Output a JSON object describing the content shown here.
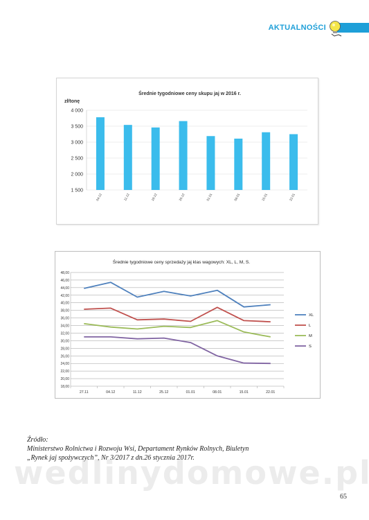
{
  "header": {
    "section": "AKTUALNOŚCI",
    "accent": "#1e9fd8"
  },
  "chart_data": [
    {
      "type": "bar",
      "title": "Średnie  tygodniowe  ceny skupu jaj w 2016 r.",
      "ylabel": "zł/tonę",
      "categories": [
        "04.12",
        "11.12",
        "18.12",
        "25.12",
        "01.01",
        "08.01",
        "15.01",
        "22.01"
      ],
      "values": [
        3780,
        3540,
        3460,
        3660,
        3190,
        3110,
        3310,
        3250
      ],
      "ylim": [
        1500,
        4000
      ],
      "yticks": [
        1500,
        2000,
        2500,
        3000,
        3500,
        4000
      ],
      "ytick_labels": [
        "1 500",
        "2 000",
        "2 500",
        "3 000",
        "3 500",
        "4 000"
      ],
      "grid": true,
      "bar_color": "#3bbcec"
    },
    {
      "type": "line",
      "title": "Średnie tygodniowe ceny sprzedaży jaj klas wagowych: XL, L, M, S.",
      "categories": [
        "27.11",
        "04.12",
        "11.12",
        "25.12",
        "01.01",
        "08.01",
        "15.01",
        "22.01"
      ],
      "ylim": [
        18,
        48
      ],
      "yticks": [
        18,
        20,
        22,
        24,
        26,
        28,
        30,
        32,
        34,
        36,
        38,
        40,
        42,
        44,
        46,
        48
      ],
      "ytick_labels": [
        "18,00",
        "20,00",
        "22,00",
        "24,00",
        "26,00",
        "28,00",
        "30,00",
        "32,00",
        "34,00",
        "36,00",
        "38,00",
        "40,00",
        "42,00",
        "44,00",
        "46,00",
        "48,00"
      ],
      "grid": true,
      "legend": "right",
      "series": [
        {
          "name": "XL",
          "color": "#4f81bd",
          "values": [
            43.8,
            45.4,
            41.5,
            43.0,
            41.8,
            43.3,
            38.9,
            39.5
          ]
        },
        {
          "name": "L",
          "color": "#c0504d",
          "values": [
            38.3,
            38.6,
            35.5,
            35.7,
            35.1,
            38.8,
            35.3,
            35.0
          ]
        },
        {
          "name": "M",
          "color": "#9bbb59",
          "values": [
            34.5,
            33.6,
            33.1,
            33.8,
            33.5,
            35.3,
            32.3,
            31.0
          ]
        },
        {
          "name": "S",
          "color": "#8064a2",
          "values": [
            31.0,
            31.0,
            30.5,
            30.7,
            29.5,
            26.0,
            24.1,
            24.0
          ]
        }
      ]
    }
  ],
  "source": {
    "label": "Źródło:",
    "line1": "Ministerstwo Rolnictwa i Rozwoju Wsi, Departament Rynków Rolnych, Biuletyn",
    "line2": "„Rynek jaj spożywczych”, Nr 3/2017 z dn.26 stycznia 2017r."
  },
  "watermark": "wedlinydomowe.pl",
  "page_number": "65"
}
